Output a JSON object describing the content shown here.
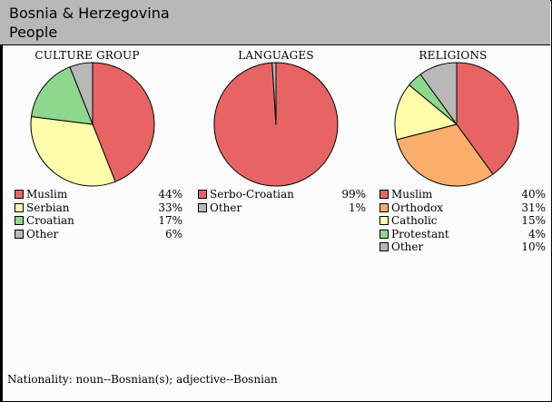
{
  "header": {
    "title": "Bosnia & Herzegovina",
    "subtitle": "People"
  },
  "chart_data": [
    {
      "type": "pie",
      "title": "CULTURE GROUP",
      "slices": [
        {
          "label": "Muslim",
          "value": 44,
          "pct_label": "44%",
          "color": "#e86464"
        },
        {
          "label": "Serbian",
          "value": 33,
          "pct_label": "33%",
          "color": "#fdfdaa"
        },
        {
          "label": "Croatian",
          "value": 17,
          "pct_label": "17%",
          "color": "#8ed88e"
        },
        {
          "label": "Other",
          "value": 6,
          "pct_label": "6%",
          "color": "#b8b8b8"
        }
      ]
    },
    {
      "type": "pie",
      "title": "LANGUAGES",
      "slices": [
        {
          "label": "Serbo-Croatian",
          "value": 99,
          "pct_label": "99%",
          "color": "#e86464"
        },
        {
          "label": "Other",
          "value": 1,
          "pct_label": "1%",
          "color": "#b8b8b8"
        }
      ]
    },
    {
      "type": "pie",
      "title": "RELIGIONS",
      "slices": [
        {
          "label": "Muslim",
          "value": 40,
          "pct_label": "40%",
          "color": "#e86464"
        },
        {
          "label": "Orthodox",
          "value": 31,
          "pct_label": "31%",
          "color": "#fcae6c"
        },
        {
          "label": "Catholic",
          "value": 15,
          "pct_label": "15%",
          "color": "#fdfdaa"
        },
        {
          "label": "Protestant",
          "value": 4,
          "pct_label": "4%",
          "color": "#8ed88e"
        },
        {
          "label": "Other",
          "value": 10,
          "pct_label": "10%",
          "color": "#b8b8b8"
        }
      ]
    }
  ],
  "footer": {
    "nationality": "Nationality:  noun--Bosnian(s);  adjective--Bosnian"
  }
}
